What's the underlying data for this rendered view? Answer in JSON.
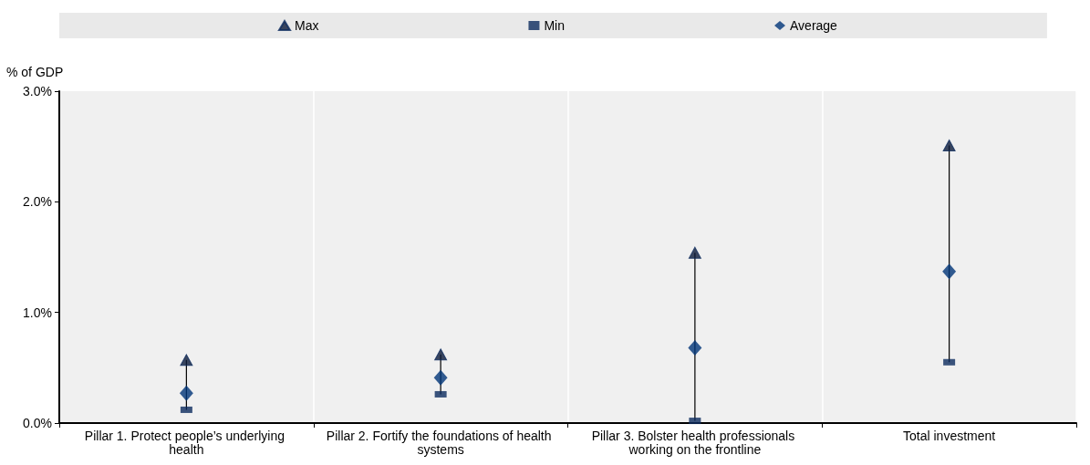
{
  "chart_data": {
    "type": "scatter",
    "ylabel": "% of GDP",
    "categories": [
      "Pillar 1. Protect people’s underlying health",
      "Pillar 2. Fortify the foundations of health systems",
      "Pillar 3. Bolster health professionals working on the frontline",
      "Total investment"
    ],
    "series": [
      {
        "name": "Max",
        "color": "#0b1a3a",
        "marker": "triangle",
        "values": [
          0.57,
          0.62,
          1.54,
          2.51
        ]
      },
      {
        "name": "Min",
        "color": "#0b2a5e",
        "values": [
          0.12,
          0.26,
          0.02,
          0.55
        ]
      },
      {
        "name": "Average",
        "color": "#003478",
        "marker": "diamond",
        "values": [
          0.27,
          0.41,
          0.68,
          1.37
        ]
      }
    ],
    "ylim": [
      0,
      3
    ],
    "yticks": [
      {
        "value": 0,
        "label": "0.0%"
      },
      {
        "value": 1,
        "label": "1.0%"
      },
      {
        "value": 2,
        "label": "2.0%"
      },
      {
        "value": 3,
        "label": "3.0%"
      }
    ],
    "grid": true,
    "legend": "top"
  }
}
